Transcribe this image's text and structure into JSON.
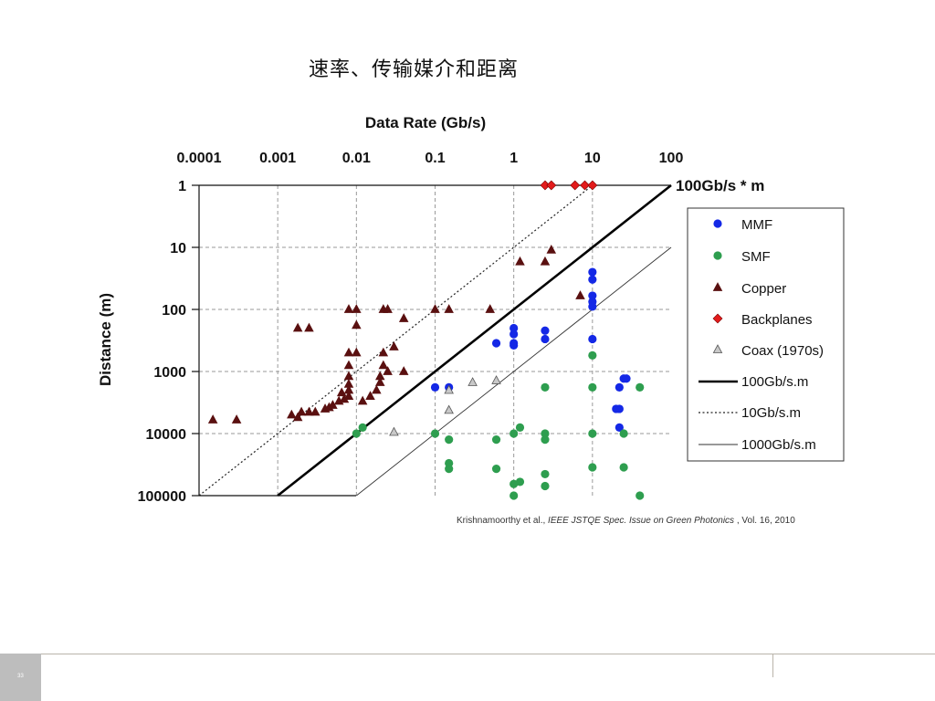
{
  "slide": {
    "title": "速率、传输媒介和距离",
    "page_number": "33"
  },
  "chart_data": {
    "type": "scatter",
    "xlabel": "Data Rate (Gb/s)",
    "ylabel": "Distance (m)",
    "x_scale": "log",
    "y_scale": "log",
    "y_inverted": true,
    "xlim": [
      0.0001,
      100
    ],
    "ylim": [
      1,
      100000
    ],
    "x_ticks": [
      "0.0001",
      "0.001",
      "0.01",
      "0.1",
      "1",
      "10",
      "100"
    ],
    "y_ticks": [
      "1",
      "10",
      "100",
      "1000",
      "10000",
      "100000"
    ],
    "grid": true,
    "legend_position": "right",
    "annotation": "100Gb/s * m",
    "annotation_color": "#e31b1b",
    "citation": {
      "authors": "Krishnamoorthy et al.,",
      "journal": "IEEE JSTQE Spec. Issue on Green Photonics",
      "volume": ", Vol. 16, 2010"
    },
    "lines": [
      {
        "name": "100Gb/s.m",
        "product": 100,
        "style": "solid-thick"
      },
      {
        "name": "10Gb/s.m",
        "product": 10,
        "style": "dotted"
      },
      {
        "name": "1000Gb/s.m",
        "product": 1000,
        "style": "solid-thin"
      }
    ],
    "series": [
      {
        "name": "MMF",
        "marker": "circle",
        "color": "#1428e6",
        "points": [
          [
            0.1,
            1800
          ],
          [
            0.15,
            1800
          ],
          [
            0.6,
            350
          ],
          [
            1,
            200
          ],
          [
            1,
            250
          ],
          [
            1,
            350
          ],
          [
            1,
            380
          ],
          [
            2.5,
            220
          ],
          [
            2.5,
            300
          ],
          [
            10,
            25
          ],
          [
            10,
            33
          ],
          [
            10,
            60
          ],
          [
            10,
            75
          ],
          [
            10,
            90
          ],
          [
            10,
            300
          ],
          [
            20,
            4000
          ],
          [
            22,
            4000
          ],
          [
            22,
            8000
          ],
          [
            22,
            1800
          ],
          [
            25,
            1300
          ],
          [
            27,
            1300
          ]
        ]
      },
      {
        "name": "SMF",
        "marker": "circle",
        "color": "#2e9e4f",
        "points": [
          [
            0.01,
            10000
          ],
          [
            0.012,
            8000
          ],
          [
            0.1,
            10000
          ],
          [
            0.15,
            12500
          ],
          [
            0.15,
            30000
          ],
          [
            0.15,
            37000
          ],
          [
            0.6,
            12500
          ],
          [
            0.6,
            37000
          ],
          [
            1,
            10000
          ],
          [
            1,
            65000
          ],
          [
            1,
            100000
          ],
          [
            1.2,
            8000
          ],
          [
            1.2,
            60000
          ],
          [
            2.5,
            1800
          ],
          [
            2.5,
            10000
          ],
          [
            2.5,
            12500
          ],
          [
            2.5,
            45000
          ],
          [
            2.5,
            70000
          ],
          [
            10,
            550
          ],
          [
            10,
            1800
          ],
          [
            10,
            10000
          ],
          [
            10,
            35000
          ],
          [
            25,
            10000
          ],
          [
            25,
            35000
          ],
          [
            40,
            1800
          ],
          [
            40,
            100000
          ]
        ]
      },
      {
        "name": "Copper",
        "marker": "triangle",
        "color": "#5a1010",
        "points": [
          [
            0.00015,
            6000
          ],
          [
            0.0003,
            6000
          ],
          [
            0.0015,
            5000
          ],
          [
            0.0018,
            5500
          ],
          [
            0.002,
            4500
          ],
          [
            0.0018,
            200
          ],
          [
            0.0025,
            200
          ],
          [
            0.0025,
            4500
          ],
          [
            0.003,
            4500
          ],
          [
            0.004,
            4000
          ],
          [
            0.0045,
            3800
          ],
          [
            0.005,
            3500
          ],
          [
            0.006,
            3000
          ],
          [
            0.0065,
            2200
          ],
          [
            0.007,
            2800
          ],
          [
            0.008,
            2500
          ],
          [
            0.008,
            2000
          ],
          [
            0.008,
            1600
          ],
          [
            0.008,
            1200
          ],
          [
            0.008,
            800
          ],
          [
            0.008,
            500
          ],
          [
            0.008,
            100
          ],
          [
            0.01,
            100
          ],
          [
            0.01,
            180
          ],
          [
            0.01,
            500
          ],
          [
            0.012,
            3000
          ],
          [
            0.015,
            2500
          ],
          [
            0.018,
            2000
          ],
          [
            0.02,
            1500
          ],
          [
            0.02,
            1200
          ],
          [
            0.022,
            800
          ],
          [
            0.022,
            500
          ],
          [
            0.022,
            100
          ],
          [
            0.025,
            100
          ],
          [
            0.025,
            1000
          ],
          [
            0.03,
            400
          ],
          [
            0.04,
            140
          ],
          [
            0.04,
            1000
          ],
          [
            0.1,
            100
          ],
          [
            0.15,
            100
          ],
          [
            0.5,
            100
          ],
          [
            1.2,
            17
          ],
          [
            2.5,
            17
          ],
          [
            3,
            11
          ],
          [
            7,
            60
          ]
        ]
      },
      {
        "name": "Backplanes",
        "marker": "diamond",
        "color": "#e31b1b",
        "points": [
          [
            2.5,
            1
          ],
          [
            3,
            1
          ],
          [
            6,
            1
          ],
          [
            8,
            1
          ],
          [
            10,
            1
          ]
        ]
      },
      {
        "name": "Coax (1970s)",
        "marker": "triangle",
        "color": "#c8c8c8",
        "points": [
          [
            0.03,
            9500
          ],
          [
            0.15,
            2000
          ],
          [
            0.15,
            4200
          ],
          [
            0.3,
            1500
          ],
          [
            0.6,
            1400
          ]
        ]
      }
    ]
  }
}
